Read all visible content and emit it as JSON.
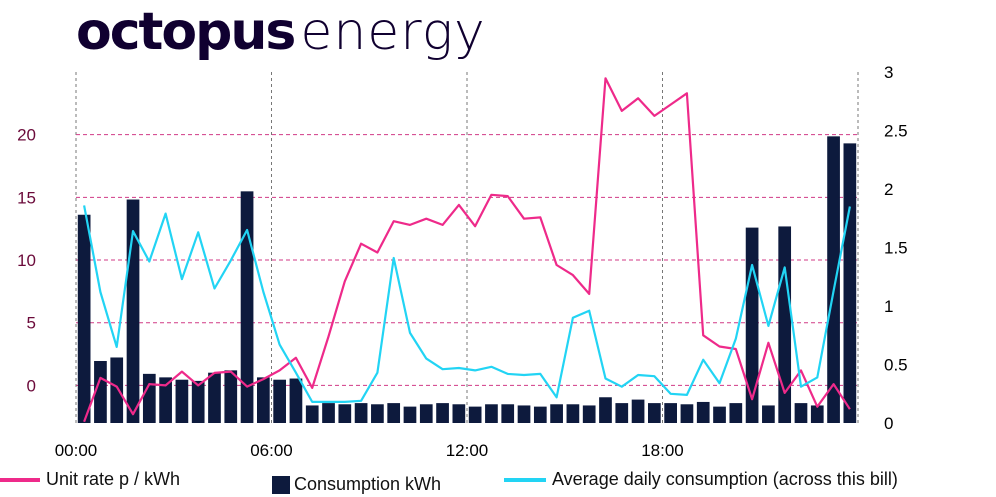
{
  "logo": {
    "bold": "octopus",
    "light": "energy"
  },
  "legend": {
    "unit_rate": "Unit rate p / kWh",
    "consumption": "Consumption kWh",
    "average": "Average daily consumption (across this bill)"
  },
  "colors": {
    "unit_rate": "#ee2a8a",
    "consumption": "#0d1a3d",
    "average": "#22d4f4",
    "grid": "#d13a86",
    "vgrid": "#777777"
  },
  "chart_data": {
    "type": "bar",
    "x_ticks": [
      "00:00",
      "06:00",
      "12:00",
      "18:00"
    ],
    "y_left_ticks": [
      "0",
      "5",
      "10",
      "15",
      "20"
    ],
    "y_right_ticks": [
      "0",
      "0.5",
      "1",
      "1.5",
      "2",
      "2.5",
      "3"
    ],
    "y_left_range": [
      -3,
      25
    ],
    "y_right_range": [
      0,
      3
    ],
    "series": [
      {
        "name": "Consumption kWh",
        "axis": "right",
        "type": "bar",
        "values": [
          1.78,
          0.53,
          0.56,
          1.91,
          0.42,
          0.39,
          0.37,
          0.36,
          0.43,
          0.45,
          1.98,
          0.39,
          0.37,
          0.38,
          0.15,
          0.17,
          0.16,
          0.17,
          0.16,
          0.17,
          0.14,
          0.16,
          0.17,
          0.16,
          0.14,
          0.16,
          0.16,
          0.15,
          0.14,
          0.16,
          0.16,
          0.15,
          0.22,
          0.17,
          0.2,
          0.17,
          0.17,
          0.16,
          0.18,
          0.14,
          0.17,
          1.67,
          0.15,
          1.68,
          0.17,
          0.15,
          2.45,
          2.39
        ]
      },
      {
        "name": "Unit rate p / kWh",
        "axis": "left",
        "type": "line",
        "values": [
          -2.9,
          0.6,
          -0.1,
          -2.3,
          0.1,
          0,
          1.1,
          0,
          1,
          1.1,
          -0.1,
          0.5,
          1.2,
          2.2,
          -0.2,
          3.9,
          8.3,
          11.3,
          10.6,
          13.1,
          12.8,
          13.3,
          12.8,
          14.4,
          12.7,
          15.2,
          15.1,
          13.3,
          13.4,
          9.6,
          8.8,
          7.3,
          24.5,
          21.9,
          22.9,
          21.5,
          22.4,
          23.3,
          4,
          3.1,
          2.9,
          -1.1,
          3.4,
          -0.6,
          1.2,
          -1.7,
          0.1,
          -1.9
        ]
      },
      {
        "name": "Average daily consumption (across this bill)",
        "axis": "right",
        "type": "line",
        "values": [
          1.86,
          1.12,
          0.65,
          1.64,
          1.38,
          1.79,
          1.23,
          1.63,
          1.15,
          1.39,
          1.65,
          1.12,
          0.67,
          0.43,
          0.18,
          0.18,
          0.18,
          0.19,
          0.43,
          1.41,
          0.77,
          0.55,
          0.46,
          0.47,
          0.45,
          0.48,
          0.42,
          0.41,
          0.42,
          0.22,
          0.9,
          0.96,
          0.38,
          0.31,
          0.41,
          0.4,
          0.25,
          0.24,
          0.54,
          0.34,
          0.72,
          1.35,
          0.83,
          1.33,
          0.31,
          0.39,
          1.13,
          1.85
        ]
      }
    ]
  }
}
